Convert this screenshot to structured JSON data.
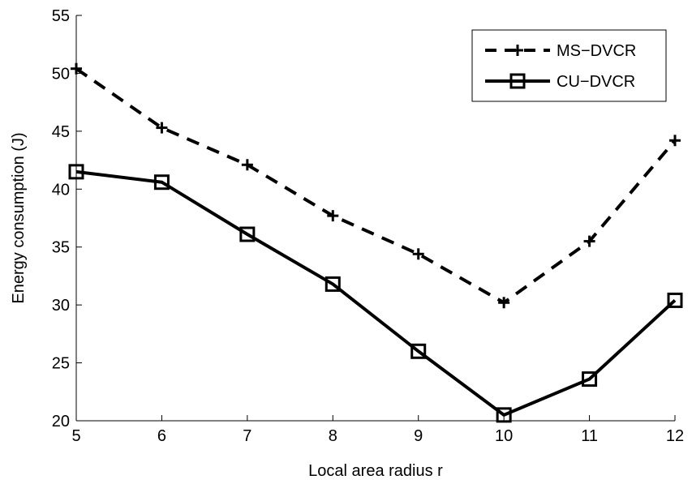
{
  "chart_data": {
    "type": "line",
    "title": "",
    "xlabel": "Local area radius r",
    "ylabel": "Energy consumption (J)",
    "x": [
      5,
      6,
      7,
      8,
      9,
      10,
      11,
      12
    ],
    "xlim": [
      5,
      12
    ],
    "ylim": [
      20,
      55
    ],
    "xticks": [
      "5",
      "6",
      "7",
      "8",
      "9",
      "10",
      "11",
      "12"
    ],
    "yticks": [
      "20",
      "25",
      "30",
      "35",
      "40",
      "45",
      "50",
      "55"
    ],
    "grid": false,
    "legend_position": "top-right",
    "series": [
      {
        "name": "MS−DVCR",
        "values": [
          50.4,
          45.3,
          42.1,
          37.7,
          34.4,
          30.2,
          35.5,
          44.2
        ],
        "line_style": "dashed",
        "marker": "plus",
        "color": "#000000"
      },
      {
        "name": "CU−DVCR",
        "values": [
          41.5,
          40.6,
          36.1,
          31.8,
          26.0,
          20.5,
          23.6,
          30.4
        ],
        "line_style": "solid",
        "marker": "square",
        "color": "#000000"
      }
    ]
  }
}
